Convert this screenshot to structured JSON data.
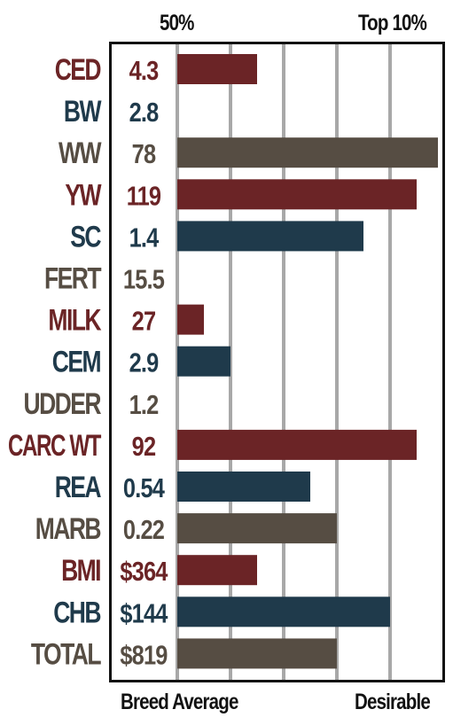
{
  "chart_data": {
    "type": "bar",
    "orientation": "horizontal",
    "top_labels": [
      "50%",
      "Top 10%"
    ],
    "bottom_labels": [
      "Breed Average",
      "Desirable"
    ],
    "grid": true,
    "colors": {
      "red": "#6b2426",
      "blue": "#1f3a4b",
      "gray": "#564d43"
    },
    "categories": [
      "CED",
      "BW",
      "WW",
      "YW",
      "SC",
      "FERT",
      "MILK",
      "CEM",
      "UDDER",
      "CARC WT",
      "REA",
      "MARB",
      "BMI",
      "CHB",
      "TOTAL"
    ],
    "value_labels": [
      "4.3",
      "2.8",
      "78",
      "119",
      "1.4",
      "15.5",
      "27",
      "2.9",
      "1.2",
      "92",
      "0.54",
      "0.22",
      "$364",
      "$144",
      "$819"
    ],
    "bar_colors": [
      "red",
      "blue",
      "gray",
      "red",
      "blue",
      "gray",
      "red",
      "blue",
      "gray",
      "red",
      "blue",
      "gray",
      "red",
      "blue",
      "gray"
    ],
    "values": [
      30,
      0,
      98,
      90,
      70,
      0,
      10,
      20,
      0,
      90,
      50,
      60,
      30,
      80,
      60
    ],
    "xlim": [
      0,
      100
    ]
  }
}
